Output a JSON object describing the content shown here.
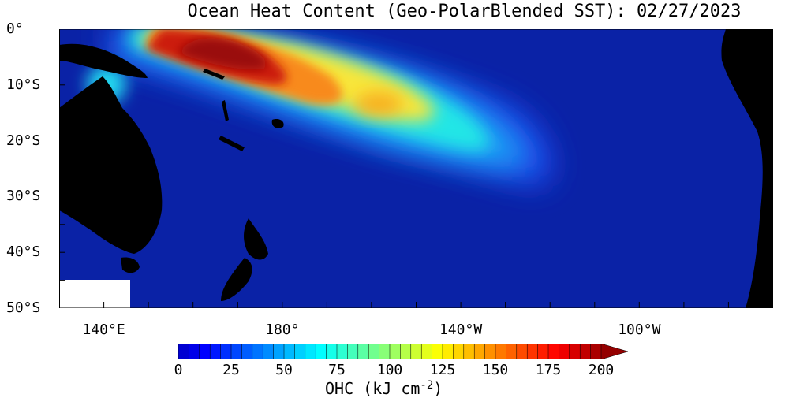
{
  "title": "Ocean Heat Content (Geo-PolarBlended SST): 02/27/2023",
  "y_axis": {
    "labels": [
      "0°",
      "10°S",
      "20°S",
      "30°S",
      "40°S",
      "50°S"
    ],
    "values": [
      0,
      -10,
      -20,
      -30,
      -40,
      -50
    ]
  },
  "x_axis": {
    "labels": [
      "140°E",
      "180°",
      "140°W",
      "100°W"
    ],
    "values": [
      140,
      180,
      220,
      260
    ]
  },
  "extent": {
    "lon": [
      130,
      290
    ],
    "lat": [
      -50,
      0
    ]
  },
  "colorbar": {
    "ticks": [
      "0",
      "25",
      "50",
      "75",
      "100",
      "125",
      "150",
      "175",
      "200"
    ],
    "min": 0,
    "max": 200,
    "extend": "max",
    "unit_text": "OHC (kJ cm",
    "unit_exp": "-2",
    "unit_close": ")"
  },
  "colors": {
    "land": "#000000",
    "nodata": "#ffffff",
    "background_ocean": "#0a22a6"
  }
}
